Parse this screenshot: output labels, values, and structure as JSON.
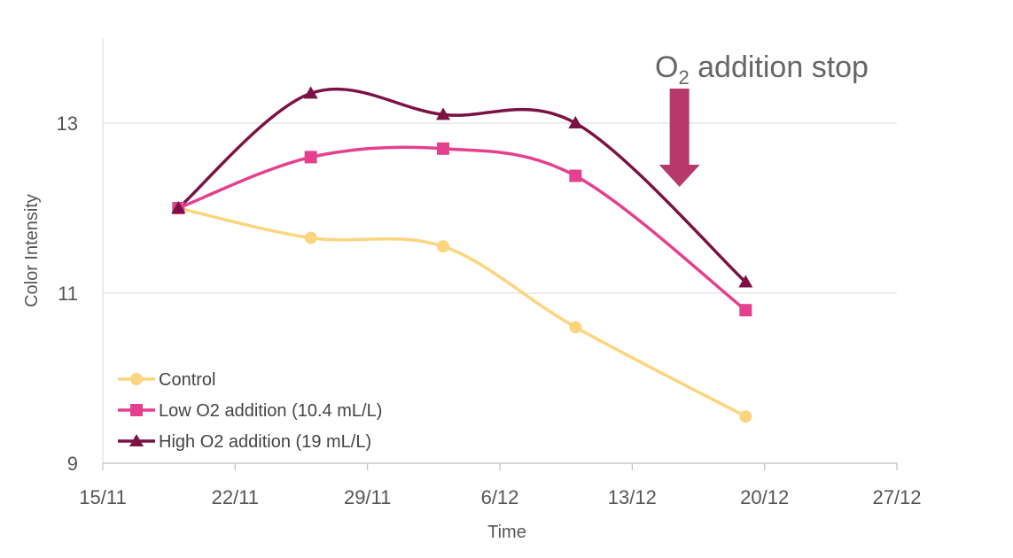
{
  "chart_data": {
    "type": "line",
    "title": "",
    "xlabel": "Time",
    "ylabel": "Color Intensity",
    "x_ticks": [
      "15/11",
      "22/11",
      "29/11",
      "6/12",
      "13/12",
      "20/12",
      "27/12"
    ],
    "x_tick_days": [
      0,
      7,
      14,
      21,
      28,
      35,
      42
    ],
    "xlim": [
      0,
      42
    ],
    "y_ticks": [
      "9",
      "11",
      "13"
    ],
    "y_tick_values": [
      9,
      11,
      13
    ],
    "ylim": [
      9,
      14
    ],
    "grid": "horizontal",
    "legend_position": "bottom-left",
    "x_days": [
      4,
      11,
      18,
      25,
      34
    ],
    "series": [
      {
        "name": "Control",
        "marker": "circle",
        "color": "#FDD57E",
        "values": [
          12.0,
          11.65,
          11.55,
          10.6,
          9.55
        ]
      },
      {
        "name": "Low O2 addition (10.4 mL/L)",
        "marker": "square",
        "color": "#E5408E",
        "values": [
          12.0,
          12.6,
          12.7,
          12.38,
          10.8
        ]
      },
      {
        "name": "High O2 addition (19 mL/L)",
        "marker": "triangle",
        "color": "#7B1245",
        "values": [
          12.0,
          13.35,
          13.1,
          13.0,
          11.13
        ]
      }
    ],
    "annotation": {
      "text_prefix": "O",
      "text_subscript": "2",
      "text_suffix": " addition stop",
      "arrow_day": 30.5,
      "arrow_color": "#B7396A"
    }
  }
}
